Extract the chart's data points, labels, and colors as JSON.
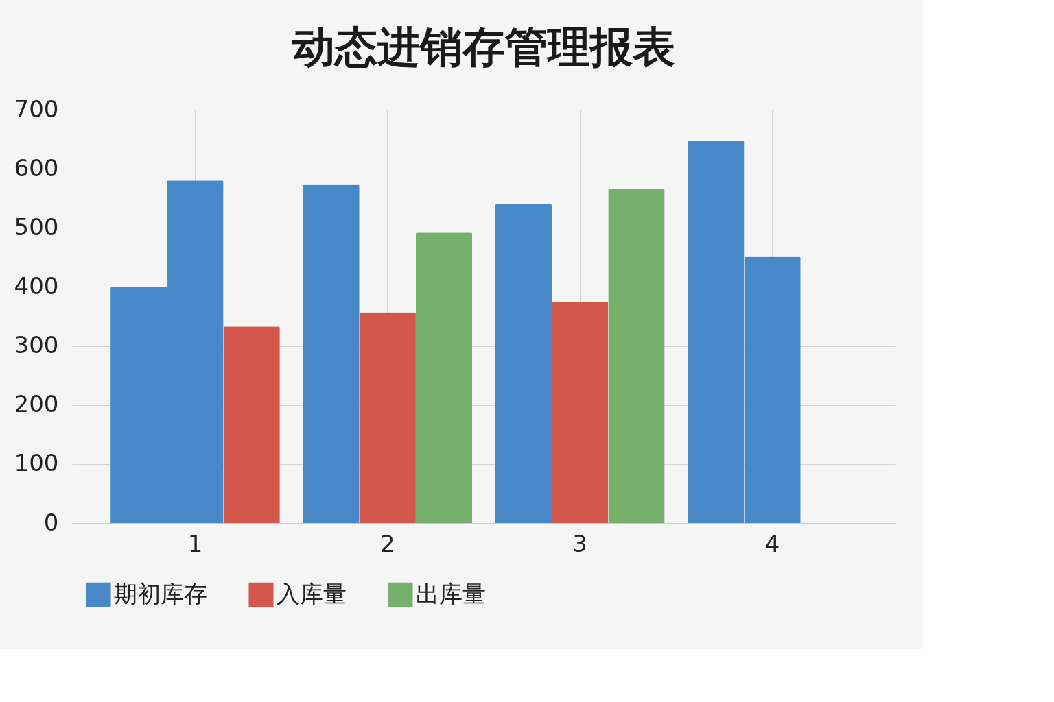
{
  "chart_data": {
    "type": "bar",
    "title": "动态进销存管理报表",
    "categories": [
      "1",
      "2",
      "3",
      "4"
    ],
    "series": [
      {
        "name": "期初库存",
        "color": "#4688c8",
        "values": [
          400,
          573,
          540,
          647
        ]
      },
      {
        "color": "#4688c8",
        "values": [
          580,
          null,
          null,
          451
        ]
      },
      {
        "name": "入库量",
        "color": "#d4574c",
        "values": [
          333,
          357,
          375,
          null
        ]
      },
      {
        "name": "出库量",
        "color": "#74b06b",
        "values": [
          null,
          492,
          566,
          null
        ]
      }
    ],
    "ylim": [
      0,
      700
    ],
    "yticks": [
      0,
      100,
      200,
      300,
      400,
      500,
      600,
      700
    ],
    "grid": true,
    "legend": "bottom"
  }
}
